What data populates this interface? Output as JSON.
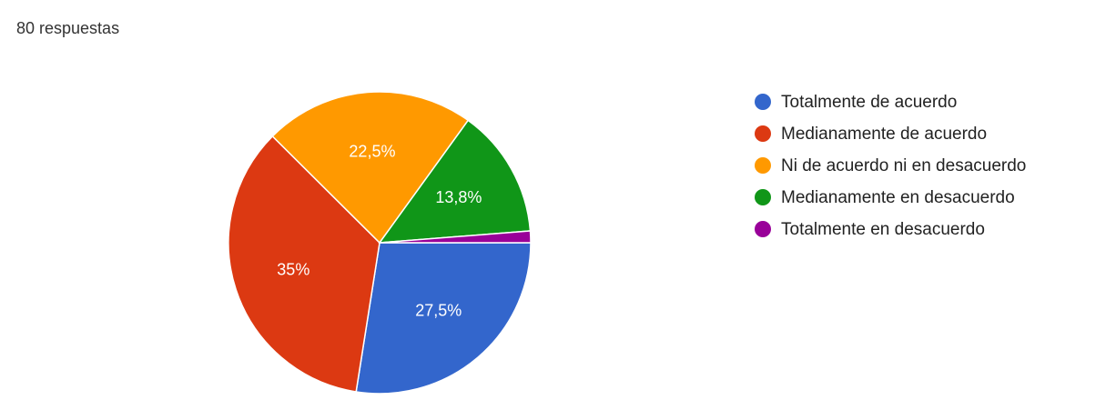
{
  "chart_data": {
    "type": "pie",
    "title": "80 respuestas",
    "categories": [
      "Totalmente de acuerdo",
      "Medianamente de acuerdo",
      "Ni de acuerdo ni en desacuerdo",
      "Medianamente en desacuerdo",
      "Totalmente en desacuerdo"
    ],
    "values": [
      27.5,
      35,
      22.5,
      13.8,
      1.25
    ],
    "value_labels": [
      "27,5%",
      "35%",
      "22,5%",
      "13,8%",
      null
    ],
    "colors": [
      "#3366cc",
      "#dc3912",
      "#ff9900",
      "#109618",
      "#990099"
    ],
    "legend": "right"
  }
}
